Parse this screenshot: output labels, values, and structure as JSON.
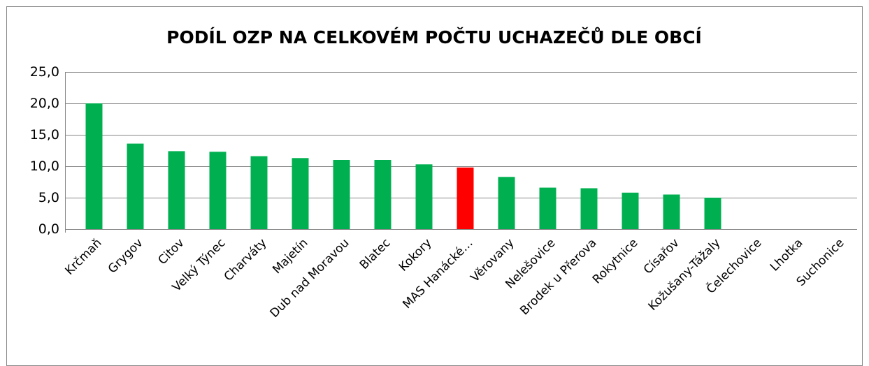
{
  "chart_data": {
    "type": "bar",
    "title": "PODÍL OZP NA CELKOVÉM POČTU UCHAZEČŮ DLE OBCÍ",
    "categories": [
      "Krčmaň",
      "Grygov",
      "Citov",
      "Velký Týnec",
      "Charváty",
      "Majetín",
      "Dub nad Moravou",
      "Blatec",
      "Kokory",
      "MAS Hanácké…",
      "Věrovany",
      "Nelešovice",
      "Brodek u Přerova",
      "Rokytnice",
      "Císařov",
      "Kožušany-Tážaly",
      "Čelechovice",
      "Lhotka",
      "Suchonice"
    ],
    "values": [
      20.0,
      13.6,
      12.4,
      12.3,
      11.6,
      11.3,
      11.0,
      11.0,
      10.3,
      9.8,
      8.3,
      6.6,
      6.5,
      5.8,
      5.5,
      5.0,
      0,
      0,
      0
    ],
    "colors": [
      "#00b050",
      "#00b050",
      "#00b050",
      "#00b050",
      "#00b050",
      "#00b050",
      "#00b050",
      "#00b050",
      "#00b050",
      "#ff0000",
      "#00b050",
      "#00b050",
      "#00b050",
      "#00b050",
      "#00b050",
      "#00b050",
      "#00b050",
      "#00b050",
      "#00b050"
    ],
    "ylim": [
      0,
      25
    ],
    "yticks": [
      {
        "value": 0,
        "label": "0,0"
      },
      {
        "value": 5,
        "label": "5,0"
      },
      {
        "value": 10,
        "label": "10,0"
      },
      {
        "value": 15,
        "label": "15,0"
      },
      {
        "value": 20,
        "label": "20,0"
      },
      {
        "value": 25,
        "label": "25,0"
      }
    ],
    "grid": true
  }
}
